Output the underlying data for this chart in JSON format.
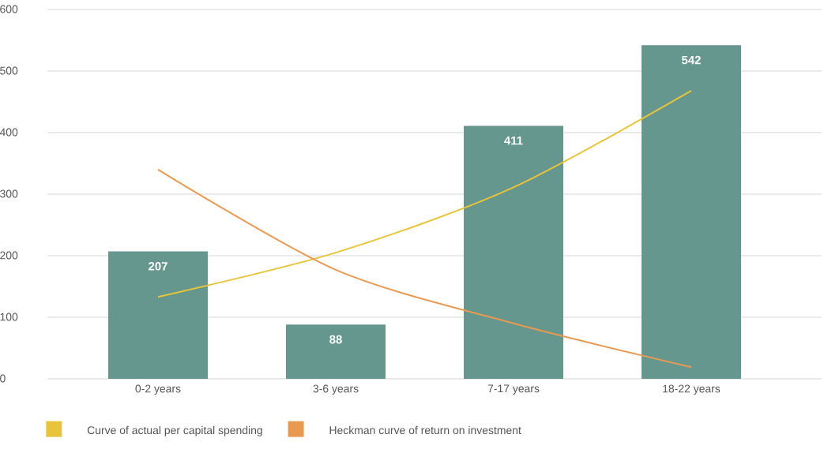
{
  "chart_data": {
    "type": "bar",
    "categories": [
      "0-2 years",
      "3-6 years",
      "7-17 years",
      "18-22 years"
    ],
    "series": [
      {
        "color": "#66978f",
        "values": [
          207,
          88,
          411,
          542
        ],
        "value_labels": [
          "207",
          "88",
          "411",
          "542"
        ]
      },
      {
        "type": "line",
        "name": "Curve of actual per capital spending",
        "color": "#e8c43a",
        "values": [
          133,
          205,
          311,
          468
        ]
      },
      {
        "type": "line",
        "name": "Heckman curve of return on investment",
        "color": "#e99a52",
        "values": [
          340,
          177,
          90,
          19
        ]
      }
    ],
    "ylim": [
      0,
      600
    ],
    "yticks": [
      0,
      100,
      200,
      300,
      400,
      500,
      600
    ],
    "grid": "y",
    "legend": "bottom"
  }
}
